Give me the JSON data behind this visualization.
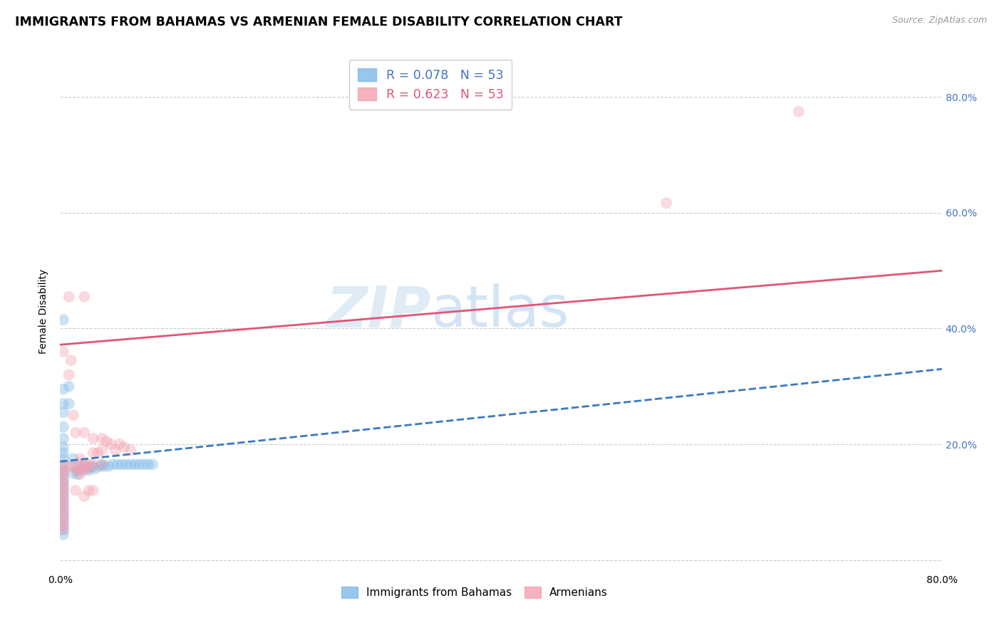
{
  "title": "IMMIGRANTS FROM BAHAMAS VS ARMENIAN FEMALE DISABILITY CORRELATION CHART",
  "source": "Source: ZipAtlas.com",
  "ylabel": "Female Disability",
  "xlim": [
    0.0,
    0.8
  ],
  "ylim": [
    -0.02,
    0.88
  ],
  "x_ticks": [
    0.0,
    0.1,
    0.2,
    0.3,
    0.4,
    0.5,
    0.6,
    0.7,
    0.8
  ],
  "x_tick_labels": [
    "0.0%",
    "",
    "",
    "",
    "",
    "",
    "",
    "",
    "80.0%"
  ],
  "y_ticks": [
    0.0,
    0.2,
    0.4,
    0.6,
    0.8
  ],
  "y_tick_labels": [
    "",
    "20.0%",
    "40.0%",
    "60.0%",
    "80.0%"
  ],
  "legend_r_blue": "0.078",
  "legend_n_blue": "53",
  "legend_r_pink": "0.623",
  "legend_n_pink": "53",
  "watermark": "ZIPatlas",
  "blue_scatter": [
    [
      0.003,
      0.415
    ],
    [
      0.003,
      0.295
    ],
    [
      0.003,
      0.27
    ],
    [
      0.003,
      0.255
    ],
    [
      0.003,
      0.23
    ],
    [
      0.003,
      0.21
    ],
    [
      0.003,
      0.195
    ],
    [
      0.003,
      0.185
    ],
    [
      0.003,
      0.175
    ],
    [
      0.003,
      0.165
    ],
    [
      0.003,
      0.155
    ],
    [
      0.003,
      0.148
    ],
    [
      0.003,
      0.14
    ],
    [
      0.003,
      0.132
    ],
    [
      0.003,
      0.124
    ],
    [
      0.003,
      0.116
    ],
    [
      0.003,
      0.108
    ],
    [
      0.003,
      0.1
    ],
    [
      0.003,
      0.092
    ],
    [
      0.003,
      0.084
    ],
    [
      0.003,
      0.076
    ],
    [
      0.003,
      0.068
    ],
    [
      0.003,
      0.06
    ],
    [
      0.003,
      0.052
    ],
    [
      0.003,
      0.044
    ],
    [
      0.008,
      0.3
    ],
    [
      0.008,
      0.27
    ],
    [
      0.012,
      0.175
    ],
    [
      0.012,
      0.162
    ],
    [
      0.012,
      0.15
    ],
    [
      0.016,
      0.155
    ],
    [
      0.016,
      0.148
    ],
    [
      0.02,
      0.158
    ],
    [
      0.022,
      0.165
    ],
    [
      0.024,
      0.158
    ],
    [
      0.026,
      0.155
    ],
    [
      0.028,
      0.16
    ],
    [
      0.03,
      0.162
    ],
    [
      0.032,
      0.158
    ],
    [
      0.036,
      0.162
    ],
    [
      0.038,
      0.165
    ],
    [
      0.04,
      0.162
    ],
    [
      0.044,
      0.162
    ],
    [
      0.048,
      0.165
    ],
    [
      0.052,
      0.165
    ],
    [
      0.056,
      0.165
    ],
    [
      0.06,
      0.165
    ],
    [
      0.064,
      0.165
    ],
    [
      0.068,
      0.165
    ],
    [
      0.072,
      0.165
    ],
    [
      0.076,
      0.165
    ],
    [
      0.08,
      0.165
    ],
    [
      0.084,
      0.165
    ]
  ],
  "pink_scatter": [
    [
      0.003,
      0.36
    ],
    [
      0.003,
      0.162
    ],
    [
      0.003,
      0.155
    ],
    [
      0.003,
      0.148
    ],
    [
      0.003,
      0.14
    ],
    [
      0.003,
      0.132
    ],
    [
      0.003,
      0.124
    ],
    [
      0.003,
      0.116
    ],
    [
      0.003,
      0.108
    ],
    [
      0.003,
      0.1
    ],
    [
      0.003,
      0.092
    ],
    [
      0.003,
      0.084
    ],
    [
      0.003,
      0.076
    ],
    [
      0.003,
      0.068
    ],
    [
      0.003,
      0.06
    ],
    [
      0.003,
      0.052
    ],
    [
      0.008,
      0.455
    ],
    [
      0.008,
      0.32
    ],
    [
      0.008,
      0.162
    ],
    [
      0.01,
      0.345
    ],
    [
      0.012,
      0.25
    ],
    [
      0.014,
      0.22
    ],
    [
      0.014,
      0.162
    ],
    [
      0.014,
      0.155
    ],
    [
      0.014,
      0.12
    ],
    [
      0.018,
      0.175
    ],
    [
      0.018,
      0.165
    ],
    [
      0.018,
      0.155
    ],
    [
      0.018,
      0.148
    ],
    [
      0.022,
      0.455
    ],
    [
      0.022,
      0.22
    ],
    [
      0.022,
      0.165
    ],
    [
      0.022,
      0.155
    ],
    [
      0.022,
      0.11
    ],
    [
      0.026,
      0.165
    ],
    [
      0.026,
      0.16
    ],
    [
      0.026,
      0.12
    ],
    [
      0.03,
      0.21
    ],
    [
      0.03,
      0.185
    ],
    [
      0.03,
      0.165
    ],
    [
      0.03,
      0.12
    ],
    [
      0.034,
      0.185
    ],
    [
      0.038,
      0.21
    ],
    [
      0.038,
      0.19
    ],
    [
      0.038,
      0.165
    ],
    [
      0.042,
      0.205
    ],
    [
      0.046,
      0.2
    ],
    [
      0.05,
      0.19
    ],
    [
      0.054,
      0.2
    ],
    [
      0.058,
      0.195
    ],
    [
      0.064,
      0.19
    ],
    [
      0.55,
      0.617
    ],
    [
      0.67,
      0.775
    ]
  ],
  "blue_line_x": [
    0.0,
    0.8
  ],
  "blue_line_y": [
    0.17,
    0.33
  ],
  "pink_line_x": [
    0.0,
    0.8
  ],
  "pink_line_y": [
    0.372,
    0.5
  ],
  "scatter_size": 130,
  "scatter_alpha": 0.4,
  "background_color": "#ffffff",
  "grid_color": "#cccccc",
  "grid_style": "--",
  "title_fontsize": 12.5,
  "axis_label_fontsize": 10,
  "tick_label_fontsize": 10,
  "tick_label_color_right": "#4472C4",
  "blue_color": "#7eb8e8",
  "blue_line_color": "#3a7abf",
  "pink_color": "#f4a0b0",
  "pink_line_color": "#e05575"
}
